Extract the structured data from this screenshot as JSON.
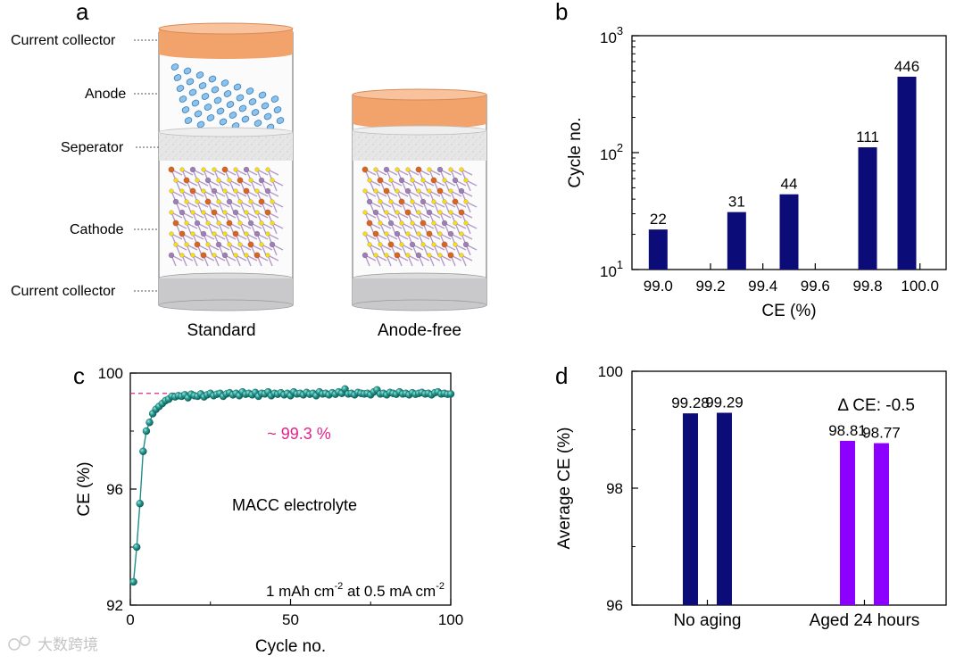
{
  "panels": {
    "a": {
      "letter": "a",
      "left_labels": [
        "Current collector",
        "Anode",
        "Seperator",
        "Cathode",
        "Current collector"
      ],
      "cell_labels": {
        "standard": "Standard",
        "anode_free": "Anode-free"
      }
    },
    "b": {
      "letter": "b"
    },
    "c": {
      "letter": "c"
    },
    "d": {
      "letter": "d"
    }
  },
  "watermark": "大数跨境",
  "colors": {
    "navy": "#0c0c78",
    "purple": "#8b00ff",
    "teal": "#1f8f88",
    "pink": "#e0248a",
    "copper": "#f0a070",
    "gray_collector": "#c8c8cc",
    "separator": "#e2e2e2"
  },
  "chart_data": [
    {
      "id": "b",
      "type": "bar",
      "xlabel": "CE (%)",
      "ylabel": "Cycle no.",
      "yscale": "log",
      "ylim": [
        10,
        1000
      ],
      "yticks": [
        {
          "base": "10",
          "exp": "1"
        },
        {
          "base": "10",
          "exp": "2"
        },
        {
          "base": "10",
          "exp": "3"
        }
      ],
      "xlim": [
        98.9,
        100.1
      ],
      "xticks": [
        "99.0",
        "99.2",
        "99.4",
        "99.6",
        "99.8",
        "100.0"
      ],
      "x": [
        99.0,
        99.3,
        99.5,
        99.8,
        99.95
      ],
      "values": [
        22,
        31,
        44,
        111,
        446
      ],
      "data_labels": [
        "22",
        "31",
        "44",
        "111",
        "446"
      ]
    },
    {
      "id": "c",
      "type": "scatter",
      "xlabel": "Cycle no.",
      "ylabel": "CE (%)",
      "xlim": [
        0,
        100
      ],
      "ylim": [
        92,
        100
      ],
      "xticks": [
        "0",
        "50",
        "100"
      ],
      "yticks": [
        "92",
        "96",
        "100"
      ],
      "reference_line": 99.3,
      "reference_label": "~ 99.3 %",
      "annotation_1": "MACC electrolyte",
      "annotation_2": {
        "a": "1 mAh cm",
        "sup1": "-2",
        "b": " at 0.5 mA cm",
        "sup2": "-2"
      },
      "x": [
        1,
        2,
        3,
        4,
        5,
        6,
        7,
        8,
        9,
        10,
        11,
        12,
        13,
        14,
        15,
        16,
        17,
        18,
        19,
        20,
        21,
        22,
        23,
        24,
        25,
        26,
        27,
        28,
        29,
        30,
        31,
        32,
        33,
        34,
        35,
        36,
        37,
        38,
        39,
        40,
        41,
        42,
        43,
        44,
        45,
        46,
        47,
        48,
        49,
        50,
        51,
        52,
        53,
        54,
        55,
        56,
        57,
        58,
        59,
        60,
        61,
        62,
        63,
        64,
        65,
        66,
        67,
        68,
        69,
        70,
        71,
        72,
        73,
        74,
        75,
        76,
        77,
        78,
        79,
        80,
        81,
        82,
        83,
        84,
        85,
        86,
        87,
        88,
        89,
        90,
        91,
        92,
        93,
        94,
        95,
        96,
        97,
        98,
        99,
        100
      ],
      "y": [
        92.8,
        94.0,
        95.5,
        97.3,
        98.0,
        98.3,
        98.6,
        98.75,
        98.85,
        98.95,
        99.05,
        99.1,
        99.2,
        99.18,
        99.22,
        99.2,
        99.25,
        99.15,
        99.27,
        99.22,
        99.2,
        99.28,
        99.18,
        99.25,
        99.3,
        99.22,
        99.27,
        99.3,
        99.2,
        99.28,
        99.32,
        99.25,
        99.3,
        99.22,
        99.35,
        99.27,
        99.3,
        99.25,
        99.33,
        99.2,
        99.3,
        99.28,
        99.35,
        99.22,
        99.3,
        99.27,
        99.32,
        99.25,
        99.3,
        99.22,
        99.35,
        99.28,
        99.3,
        99.25,
        99.33,
        99.27,
        99.3,
        99.22,
        99.35,
        99.28,
        99.3,
        99.25,
        99.32,
        99.27,
        99.35,
        99.3,
        99.45,
        99.28,
        99.3,
        99.25,
        99.33,
        99.3,
        99.28,
        99.3,
        99.25,
        99.35,
        99.42,
        99.28,
        99.3,
        99.25,
        99.33,
        99.3,
        99.27,
        99.35,
        99.28,
        99.3,
        99.25,
        99.32,
        99.27,
        99.3,
        99.33,
        99.28,
        99.3,
        99.25,
        99.32,
        99.35,
        99.28,
        99.3,
        99.27,
        99.28
      ]
    },
    {
      "id": "d",
      "type": "bar",
      "xlabel": "",
      "ylabel": "Average CE (%)",
      "ylim": [
        96,
        100
      ],
      "yticks": [
        "96",
        "98",
        "100"
      ],
      "categories": [
        "No aging",
        "Aged 24 hours"
      ],
      "series_values": [
        [
          99.28,
          99.29
        ],
        [
          98.81,
          98.77
        ]
      ],
      "data_labels": [
        [
          "99.28",
          "99.29"
        ],
        [
          "98.81",
          "98.77"
        ]
      ],
      "annotation": "Δ CE: -0.5"
    }
  ]
}
